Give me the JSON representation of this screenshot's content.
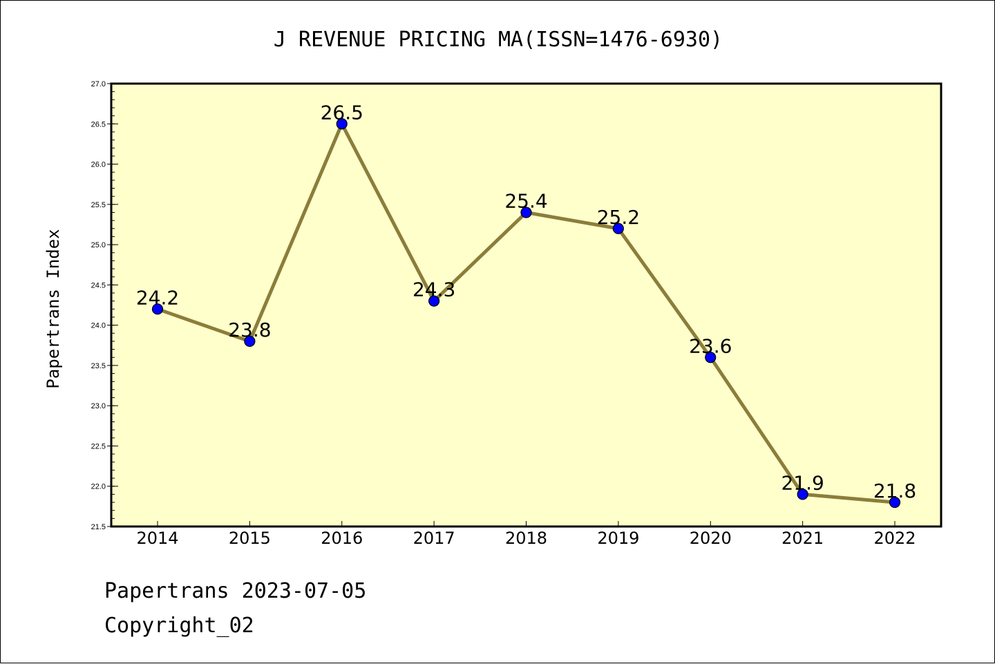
{
  "chart_data": {
    "type": "line",
    "title": "J REVENUE PRICING MA(ISSN=1476-6930)",
    "xlabel": "",
    "ylabel": "Papertrans Index",
    "categories": [
      "2014",
      "2015",
      "2016",
      "2017",
      "2018",
      "2019",
      "2020",
      "2021",
      "2022"
    ],
    "values": [
      24.2,
      23.8,
      26.5,
      24.3,
      25.4,
      25.2,
      23.6,
      21.9,
      21.8
    ],
    "data_labels": [
      "24.2",
      "23.8",
      "26.5",
      "24.3",
      "25.4",
      "25.2",
      "23.6",
      "21.9",
      "21.8"
    ],
    "ylim": [
      21.5,
      27.0
    ],
    "yticks": [
      "21.5",
      "22.0",
      "22.5",
      "23.0",
      "23.5",
      "24.0",
      "24.5",
      "25.0",
      "25.5",
      "26.0",
      "26.5",
      "27.0"
    ],
    "grid": false,
    "legend": "none"
  },
  "colors": {
    "plot_background": "#ffffcc",
    "line": "#8b7d3a",
    "marker": "#0000ff"
  },
  "footer": {
    "line1": "Papertrans 2023-07-05",
    "line2": "Copyright_02"
  }
}
